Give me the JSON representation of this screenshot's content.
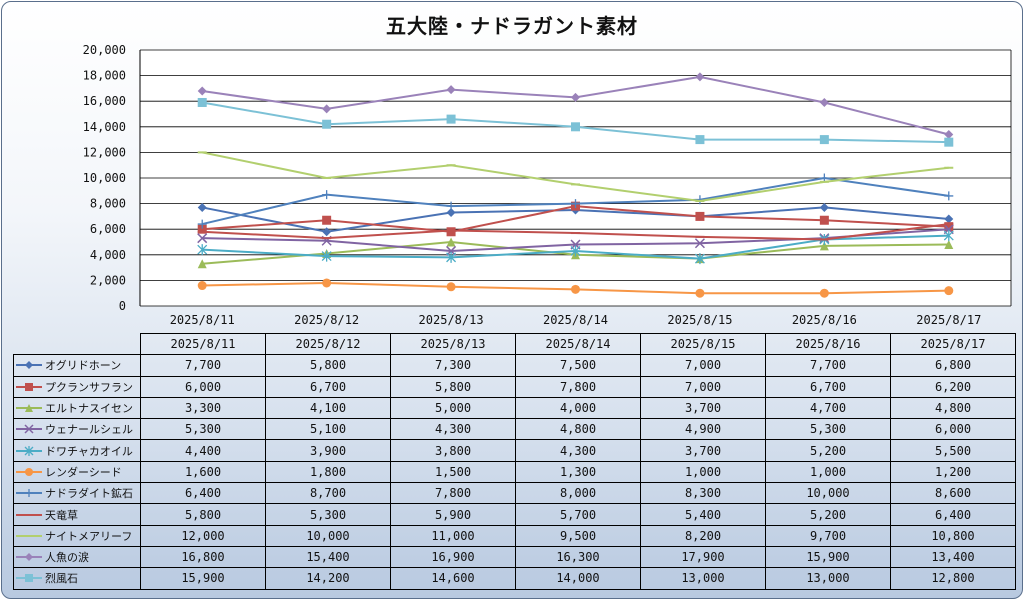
{
  "chart_data": {
    "type": "line",
    "title": "五大陸・ナドラガント素材",
    "categories": [
      "2025/8/11",
      "2025/8/12",
      "2025/8/13",
      "2025/8/14",
      "2025/8/15",
      "2025/8/16",
      "2025/8/17"
    ],
    "ylim": [
      0,
      20000
    ],
    "yticks": [
      "0",
      "2,000",
      "4,000",
      "6,000",
      "8,000",
      "10,000",
      "12,000",
      "14,000",
      "16,000",
      "18,000",
      "20,000"
    ],
    "grid": true,
    "legend": "data-table",
    "series": [
      {
        "name": "オグリドホーン",
        "color": "#4a72b4",
        "marker": "diamond",
        "values": [
          7700,
          5800,
          7300,
          7500,
          7000,
          7700,
          6800
        ],
        "labels": [
          "7,700",
          "5,800",
          "7,300",
          "7,500",
          "7,000",
          "7,700",
          "6,800"
        ]
      },
      {
        "name": "プクランサフラン",
        "color": "#c0504d",
        "marker": "square",
        "values": [
          6000,
          6700,
          5800,
          7800,
          7000,
          6700,
          6200
        ],
        "labels": [
          "6,000",
          "6,700",
          "5,800",
          "7,800",
          "7,000",
          "6,700",
          "6,200"
        ]
      },
      {
        "name": "エルトナスイセン",
        "color": "#9bbb59",
        "marker": "triangle",
        "values": [
          3300,
          4100,
          5000,
          4000,
          3700,
          4700,
          4800
        ],
        "labels": [
          "3,300",
          "4,100",
          "5,000",
          "4,000",
          "3,700",
          "4,700",
          "4,800"
        ]
      },
      {
        "name": "ウェナールシェル",
        "color": "#8064a2",
        "marker": "x",
        "values": [
          5300,
          5100,
          4300,
          4800,
          4900,
          5300,
          6000
        ],
        "labels": [
          "5,300",
          "5,100",
          "4,300",
          "4,800",
          "4,900",
          "5,300",
          "6,000"
        ]
      },
      {
        "name": "ドワチャカオイル",
        "color": "#4bacc6",
        "marker": "star",
        "values": [
          4400,
          3900,
          3800,
          4300,
          3700,
          5200,
          5500
        ],
        "labels": [
          "4,400",
          "3,900",
          "3,800",
          "4,300",
          "3,700",
          "5,200",
          "5,500"
        ]
      },
      {
        "name": "レンダーシード",
        "color": "#f79646",
        "marker": "circle",
        "values": [
          1600,
          1800,
          1500,
          1300,
          1000,
          1000,
          1200
        ],
        "labels": [
          "1,600",
          "1,800",
          "1,500",
          "1,300",
          "1,000",
          "1,000",
          "1,200"
        ]
      },
      {
        "name": "ナドラダイト鉱石",
        "color": "#4f81bd",
        "marker": "plus",
        "values": [
          6400,
          8700,
          7800,
          8000,
          8300,
          10000,
          8600
        ],
        "labels": [
          "6,400",
          "8,700",
          "7,800",
          "8,000",
          "8,300",
          "10,000",
          "8,600"
        ]
      },
      {
        "name": "天竜草",
        "color": "#c0504d",
        "marker": "dash",
        "values": [
          5800,
          5300,
          5900,
          5700,
          5400,
          5200,
          6400
        ],
        "labels": [
          "5,800",
          "5,300",
          "5,900",
          "5,700",
          "5,400",
          "5,200",
          "6,400"
        ]
      },
      {
        "name": "ナイトメアリーフ",
        "color": "#b2cf6e",
        "marker": "dash",
        "values": [
          12000,
          10000,
          11000,
          9500,
          8200,
          9700,
          10800
        ],
        "labels": [
          "12,000",
          "10,000",
          "11,000",
          "9,500",
          "8,200",
          "9,700",
          "10,800"
        ]
      },
      {
        "name": "人魚の涙",
        "color": "#9a82b9",
        "marker": "diamond",
        "values": [
          16800,
          15400,
          16900,
          16300,
          17900,
          15900,
          13400
        ],
        "labels": [
          "16,800",
          "15,400",
          "16,900",
          "16,300",
          "17,900",
          "15,900",
          "13,400"
        ]
      },
      {
        "name": "烈風石",
        "color": "#7cc1d6",
        "marker": "square",
        "values": [
          15900,
          14200,
          14600,
          14000,
          13000,
          13000,
          12800
        ],
        "labels": [
          "15,900",
          "14,200",
          "14,600",
          "14,000",
          "13,000",
          "13,000",
          "12,800"
        ]
      }
    ]
  }
}
